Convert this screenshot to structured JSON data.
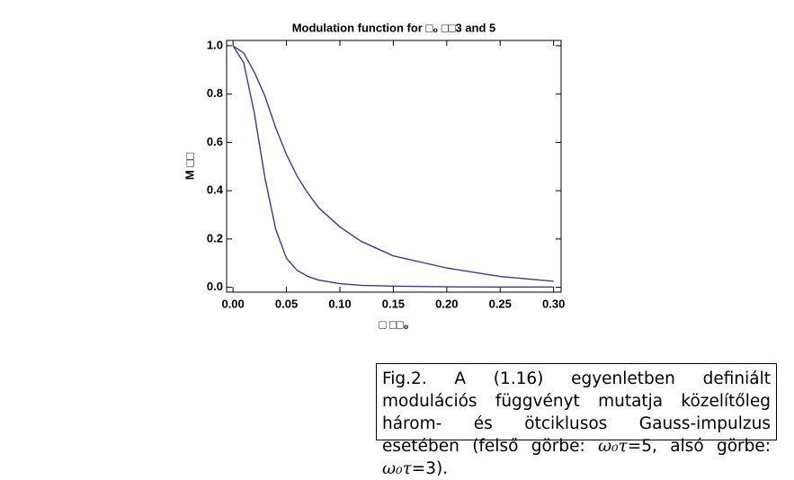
{
  "chart_data": {
    "type": "line",
    "title": "Modulation  function  for  □₀ □□3  and  5",
    "xlabel": "□ □□₀",
    "ylabel": "M □□ ",
    "x": [
      0,
      0.01,
      0.02,
      0.03,
      0.04,
      0.05,
      0.06,
      0.07,
      0.08,
      0.1,
      0.12,
      0.15,
      0.2,
      0.25,
      0.3
    ],
    "series": [
      {
        "color": "#3b3b8f",
        "values": [
          1,
          0.97,
          0.89,
          0.79,
          0.66,
          0.55,
          0.46,
          0.39,
          0.33,
          0.25,
          0.19,
          0.13,
          0.08,
          0.045,
          0.025
        ]
      },
      {
        "color": "#3b3b8f",
        "values": [
          1,
          0.93,
          0.72,
          0.45,
          0.24,
          0.12,
          0.07,
          0.045,
          0.03,
          0.015,
          0.008,
          0.005,
          0.002,
          0.001,
          0.001
        ]
      }
    ],
    "xlim": [
      -0.006,
      0.307
    ],
    "ylim": [
      -0.02,
      1.022
    ],
    "xticks": [
      {
        "value": 0,
        "label": "0.00"
      },
      {
        "value": 0.05,
        "label": "0.05"
      },
      {
        "value": 0.1,
        "label": "0.10"
      },
      {
        "value": 0.15,
        "label": "0.15"
      },
      {
        "value": 0.2,
        "label": "0.20"
      },
      {
        "value": 0.25,
        "label": "0.25"
      },
      {
        "value": 0.3,
        "label": "0.30"
      }
    ],
    "yticks": [
      {
        "value": 0,
        "label": "0.0"
      },
      {
        "value": 0.2,
        "label": "0.2"
      },
      {
        "value": 0.4,
        "label": "0.4"
      },
      {
        "value": 0.6,
        "label": "0.6"
      },
      {
        "value": 0.8,
        "label": "0.8"
      },
      {
        "value": 1,
        "label": "1.0"
      }
    ],
    "grid": false
  },
  "caption": {
    "text": "Fig.2. A (1.16) egyenletben definiált modulációs függvényt mutatja közelítőleg három- és ötciklusos Gauss-impulzus esetében (felső görbe: ",
    "sym1": "ω₀τ",
    "mid": "=5,  alsó görbe: ",
    "sym2": "ω₀τ",
    "end": "=3)."
  }
}
